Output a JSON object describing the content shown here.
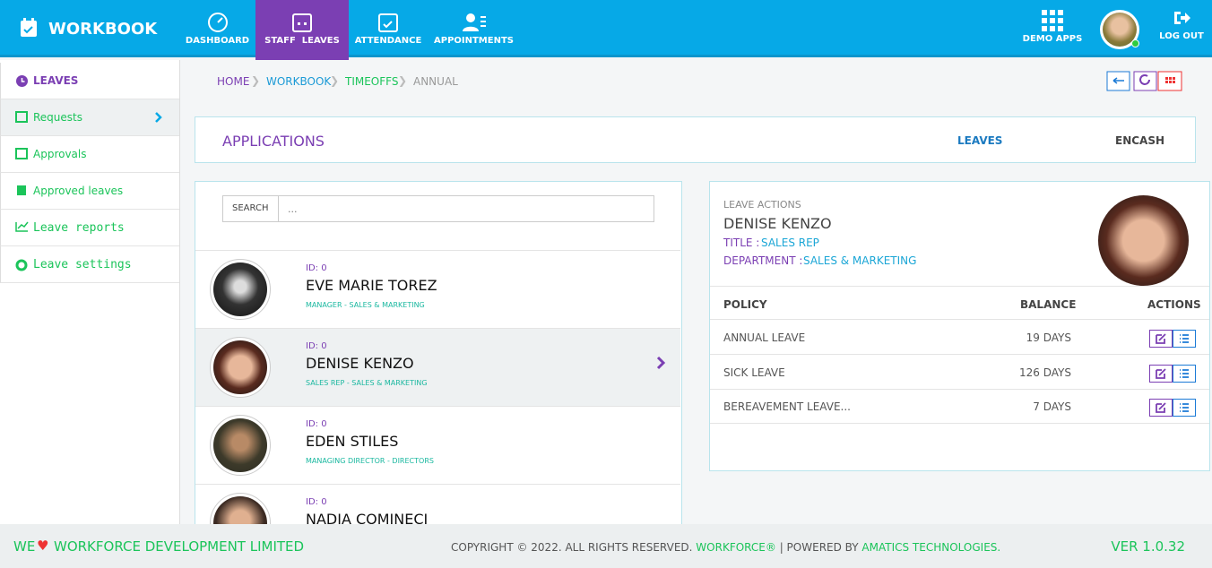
{
  "header": {
    "brand": "WORKBOOK",
    "nav": [
      "DASHBOARD",
      "STAFF  LEAVES",
      "ATTENDANCE",
      "APPOINTMENTS"
    ],
    "demo_apps": "DEMO APPS",
    "logout": "LOG OUT"
  },
  "sidebar": {
    "title": "LEAVES",
    "items": [
      "Requests",
      "Approvals",
      "Approved leaves",
      "Leave reports",
      "Leave settings"
    ]
  },
  "breadcrumb": [
    "HOME",
    "WORKBOOK",
    "TIMEOFFS",
    "ANNUAL"
  ],
  "applications": {
    "title": "APPLICATIONS",
    "tabs": [
      "LEAVES",
      "ENCASH"
    ]
  },
  "search": {
    "label": "SEARCH",
    "placeholder": "..."
  },
  "staff": [
    {
      "id": "ID: 0",
      "name": "EVE MARIE TOREZ",
      "role": "MANAGER - SALES & MARKETING"
    },
    {
      "id": "ID: 0",
      "name": "DENISE KENZO",
      "role": "SALES REP - SALES & MARKETING"
    },
    {
      "id": "ID: 0",
      "name": "EDEN STILES",
      "role": "MANAGING DIRECTOR - DIRECTORS"
    },
    {
      "id": "ID: 0",
      "name": "NADIA COMINECI",
      "role": ""
    }
  ],
  "leave_actions": {
    "label": "LEAVE ACTIONS",
    "name": "DENISE KENZO",
    "title_label": "TITLE :",
    "title": "SALES REP",
    "department_label": "DEPARTMENT :",
    "department": "SALES & MARKETING"
  },
  "policy_table": {
    "columns": [
      "POLICY",
      "BALANCE",
      "ACTIONS"
    ],
    "rows": [
      [
        "ANNUAL LEAVE",
        "19 DAYS"
      ],
      [
        "SICK LEAVE",
        "126 DAYS"
      ],
      [
        "BEREAVEMENT LEAVE...",
        "7 DAYS"
      ]
    ]
  },
  "footer": {
    "left_we": "WE",
    "left_company": "WORKFORCE DEVELOPMENT LIMITED",
    "copyright": "COPYRIGHT © 2022. ALL RIGHTS RESERVED.",
    "brand": "WORKFORCE®",
    "powered": "| POWERED BY",
    "vendor": "AMATICS TECHNOLOGIES.",
    "version": "VER 1.0.32"
  }
}
